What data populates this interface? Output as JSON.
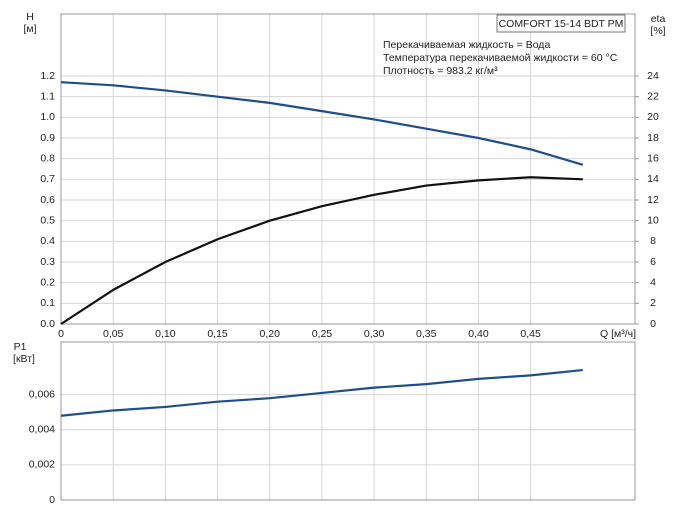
{
  "chart_data": [
    {
      "type": "line",
      "y_label": "H",
      "y_unit": "[м]",
      "y2_label": "eta",
      "y2_unit": "[%]",
      "x_label": "Q [м³/ч]",
      "box_title": "COMFORT 15-14 BDT PM",
      "notes": [
        "Перекачиваемая жидкость = Вода",
        "Температура перекачиваемой жидкости = 60 °C",
        "Плотность = 983.2 кг/м³"
      ],
      "x": [
        0,
        0.05,
        0.1,
        0.15,
        0.2,
        0.25,
        0.3,
        0.35,
        0.4,
        0.45,
        0.5
      ],
      "series": [
        {
          "color": "#1f4e8c",
          "values": [
            1.17,
            1.155,
            1.13,
            1.1,
            1.07,
            1.03,
            0.99,
            0.945,
            0.9,
            0.845,
            0.77
          ]
        },
        {
          "color": "#111111",
          "axis": "y2",
          "values": [
            0,
            3.3,
            6.0,
            8.2,
            10.0,
            11.4,
            12.5,
            13.4,
            13.9,
            14.2,
            14.0
          ]
        }
      ],
      "xlim": [
        0,
        0.55
      ],
      "xticks": [
        0,
        {
          "value": 0.05,
          "label": "0,05"
        },
        {
          "value": 0.1,
          "label": "0,10"
        },
        {
          "value": 0.15,
          "label": "0,15"
        },
        {
          "value": 0.2,
          "label": "0,20"
        },
        {
          "value": 0.25,
          "label": "0,25"
        },
        {
          "value": 0.3,
          "label": "0,30"
        },
        {
          "value": 0.35,
          "label": "0,35"
        },
        {
          "value": 0.4,
          "label": "0,40"
        },
        {
          "value": 0.45,
          "label": "0,45"
        }
      ],
      "ylim": [
        0,
        1.5
      ],
      "yticks": [
        {
          "value": 0,
          "label": "0.0"
        },
        0.1,
        0.2,
        0.3,
        0.4,
        0.5,
        0.6,
        0.7,
        0.8,
        0.9,
        {
          "value": 1,
          "label": "1.0"
        },
        1.1,
        1.2
      ],
      "y2lim": [
        0,
        30
      ],
      "y2ticks": [
        0,
        2,
        4,
        6,
        8,
        10,
        12,
        14,
        16,
        18,
        20,
        22,
        24
      ],
      "grid": true
    },
    {
      "type": "line",
      "y_label": "P1",
      "y_unit": "[кВт]",
      "x": [
        0,
        0.05,
        0.1,
        0.15,
        0.2,
        0.25,
        0.3,
        0.35,
        0.4,
        0.45,
        0.5
      ],
      "series": [
        {
          "color": "#1f4e8c",
          "values": [
            0.0048,
            0.0051,
            0.0053,
            0.0056,
            0.0058,
            0.0061,
            0.0064,
            0.0066,
            0.0069,
            0.0071,
            0.0074
          ]
        }
      ],
      "xlim": [
        0,
        0.55
      ],
      "ylim": [
        0,
        0.009
      ],
      "yticks": [
        0,
        {
          "value": 0.002,
          "label": "0,002"
        },
        {
          "value": 0.004,
          "label": "0,004"
        },
        {
          "value": 0.006,
          "label": "0,006"
        }
      ],
      "grid": true
    }
  ]
}
